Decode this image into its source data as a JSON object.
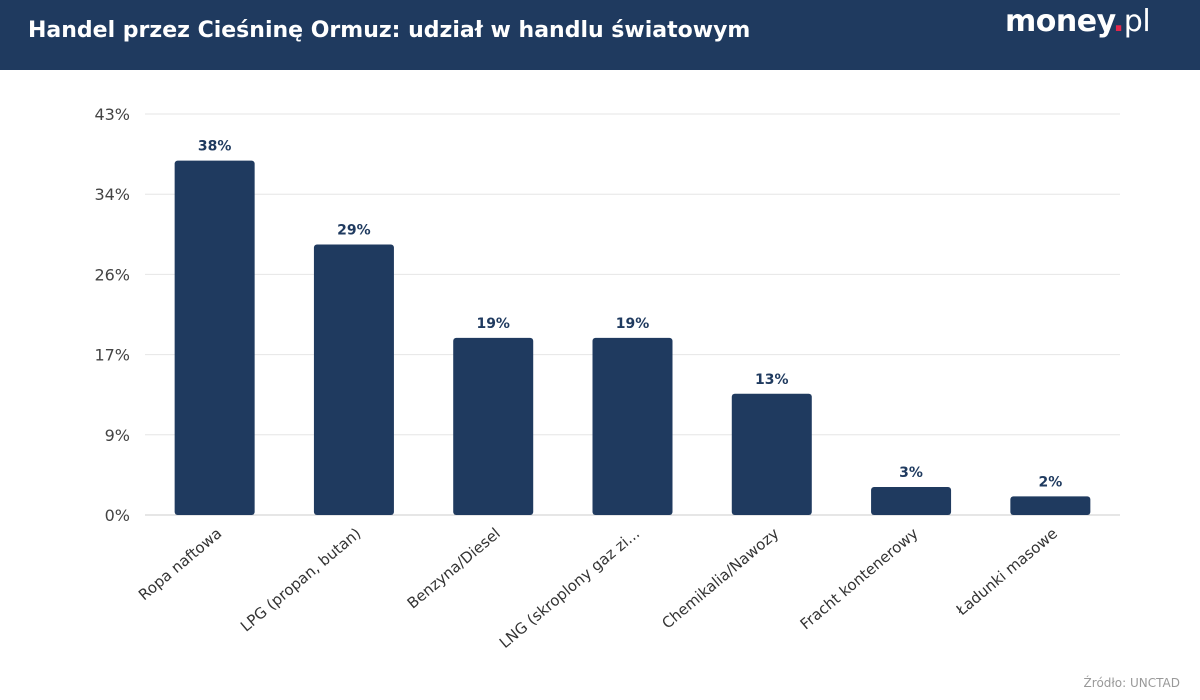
{
  "header": {
    "title": "Handel przez Cieśninę Ormuz: udział w handlu światowym",
    "logo": "money.pl"
  },
  "source": "Źródło: UNCTAD",
  "colors": {
    "header_bg": "#1f3a5f",
    "bar": "#1f3a5f",
    "logo_dot": "#e4264b"
  },
  "chart_data": {
    "type": "bar",
    "categories": [
      "Ropa naftowa",
      "LPG (propan, butan)",
      "Benzyna/Diesel",
      "LNG (skroplony gaz zi...",
      "Chemikalia/Nawozy",
      "Fracht kontenerowy",
      "Ładunki masowe"
    ],
    "values": [
      38,
      29,
      19,
      19,
      13,
      3,
      2
    ],
    "data_labels": [
      "38%",
      "29%",
      "19%",
      "19%",
      "13%",
      "3%",
      "2%"
    ],
    "yticks": [
      "0%",
      "9%",
      "17%",
      "26%",
      "34%",
      "43%"
    ],
    "ylim": [
      0,
      43
    ],
    "grid": true,
    "legend": "none"
  }
}
